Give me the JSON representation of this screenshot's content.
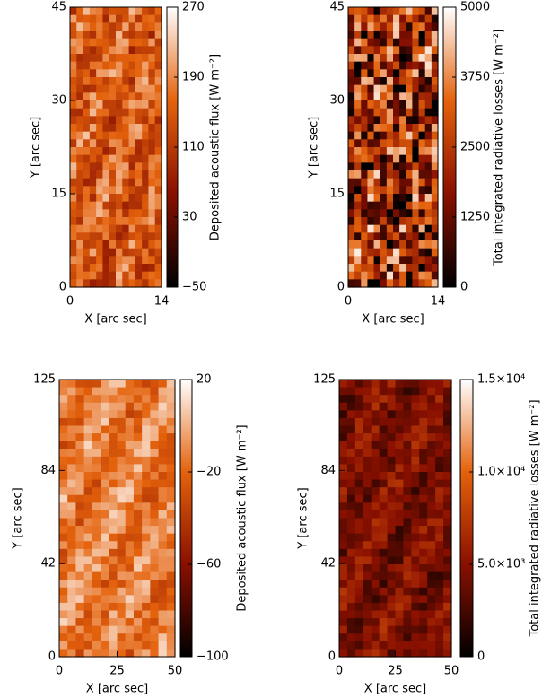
{
  "chart_data": [
    {
      "type": "heatmap",
      "xlabel": "X [arc sec]",
      "ylabel": "Y [arc sec]",
      "xlim": [
        0,
        14
      ],
      "xticks": [
        0,
        14
      ],
      "ylim": [
        0,
        45
      ],
      "yticks": [
        0,
        15,
        30,
        45
      ],
      "colormap": [
        "#000000",
        "#8a1000",
        "#e4620c",
        "#ffffff"
      ],
      "colorbar": {
        "label": "Deposited acoustic flux [W m⁻²]",
        "lim": [
          -50,
          270
        ],
        "ticks": [
          {
            "value": -50,
            "label": "−50"
          },
          30,
          110,
          190,
          270
        ]
      }
    },
    {
      "type": "heatmap",
      "xlabel": "X [arc sec]",
      "ylabel": "Y [arc sec]",
      "xlim": [
        0,
        14
      ],
      "xticks": [
        0,
        14
      ],
      "ylim": [
        0,
        45
      ],
      "yticks": [
        0,
        15,
        30,
        45
      ],
      "colormap": [
        "#000000",
        "#8a1000",
        "#e4620c",
        "#ffffff"
      ],
      "colorbar": {
        "label": "Total integrated radiative losses [W m⁻²]",
        "lim": [
          0,
          5000
        ],
        "ticks": [
          0,
          1250,
          2500,
          3750,
          5000
        ]
      }
    },
    {
      "type": "heatmap",
      "xlabel": "X [arc sec]",
      "ylabel": "Y [arc sec]",
      "xlim": [
        0,
        50
      ],
      "xticks": [
        0,
        25,
        50
      ],
      "ylim": [
        0,
        125
      ],
      "yticks": [
        0,
        42,
        84,
        125
      ],
      "colormap": [
        "#000000",
        "#8a1000",
        "#e4620c",
        "#ffffff"
      ],
      "colorbar": {
        "label": "Deposited acoustic flux [W m⁻²]",
        "lim": [
          -100,
          20
        ],
        "ticks": [
          {
            "value": -100,
            "label": "−100"
          },
          {
            "value": -60,
            "label": "−60"
          },
          {
            "value": -20,
            "label": "−20"
          },
          20
        ]
      }
    },
    {
      "type": "heatmap",
      "xlabel": "X [arc sec]",
      "ylabel": "Y [arc sec]",
      "xlim": [
        0,
        50
      ],
      "xticks": [
        0,
        25,
        50
      ],
      "ylim": [
        0,
        125
      ],
      "yticks": [
        0,
        42,
        84,
        125
      ],
      "colormap": [
        "#000000",
        "#8a1000",
        "#e4620c",
        "#ffffff"
      ],
      "colorbar": {
        "label": "Total integrated radiative losses [W m⁻²]",
        "lim": [
          0,
          15000
        ],
        "ticks": [
          0,
          {
            "value": 5000,
            "label": "5.0×10³"
          },
          {
            "value": 10000,
            "label": "1.0×10⁴"
          },
          {
            "value": 15000,
            "label": "1.5×10⁴"
          }
        ]
      }
    }
  ]
}
